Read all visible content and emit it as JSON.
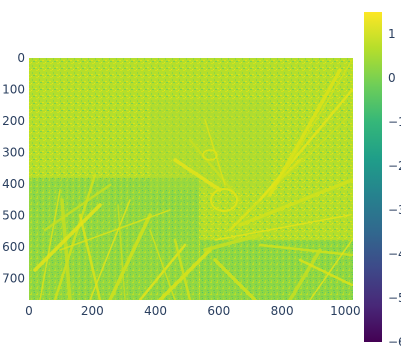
{
  "chart_data": {
    "type": "heatmap",
    "title": "",
    "xlabel": "",
    "ylabel": "",
    "x_range": [
      0,
      1024
    ],
    "y_range": [
      768,
      0
    ],
    "y_reversed": true,
    "x_ticks": [
      "0",
      "200",
      "400",
      "600",
      "800",
      "1000"
    ],
    "x_tick_values": [
      0,
      200,
      400,
      600,
      800,
      1000
    ],
    "y_ticks": [
      "0",
      "100",
      "200",
      "300",
      "400",
      "500",
      "600",
      "700"
    ],
    "y_tick_values": [
      0,
      100,
      200,
      300,
      400,
      500,
      600,
      700
    ],
    "colorbar": {
      "range": [
        -6,
        1.5
      ],
      "ticks": [
        "1",
        "0",
        "−1",
        "−2",
        "−3",
        "−4",
        "−5",
        "−6"
      ],
      "tick_values": [
        1,
        0,
        -1,
        -2,
        -3,
        -4,
        -5,
        -6
      ],
      "colorscale": "Viridis"
    },
    "colorscale_stops": [
      "#440154",
      "#482878",
      "#3e4989",
      "#31688e",
      "#26828e",
      "#1f9e89",
      "#35b779",
      "#6ece58",
      "#b5de2b",
      "#fde725"
    ],
    "dominant_colors": [
      "#b5de2b",
      "#9fd938",
      "#6ece58",
      "#35b779",
      "#1f9e89"
    ]
  }
}
